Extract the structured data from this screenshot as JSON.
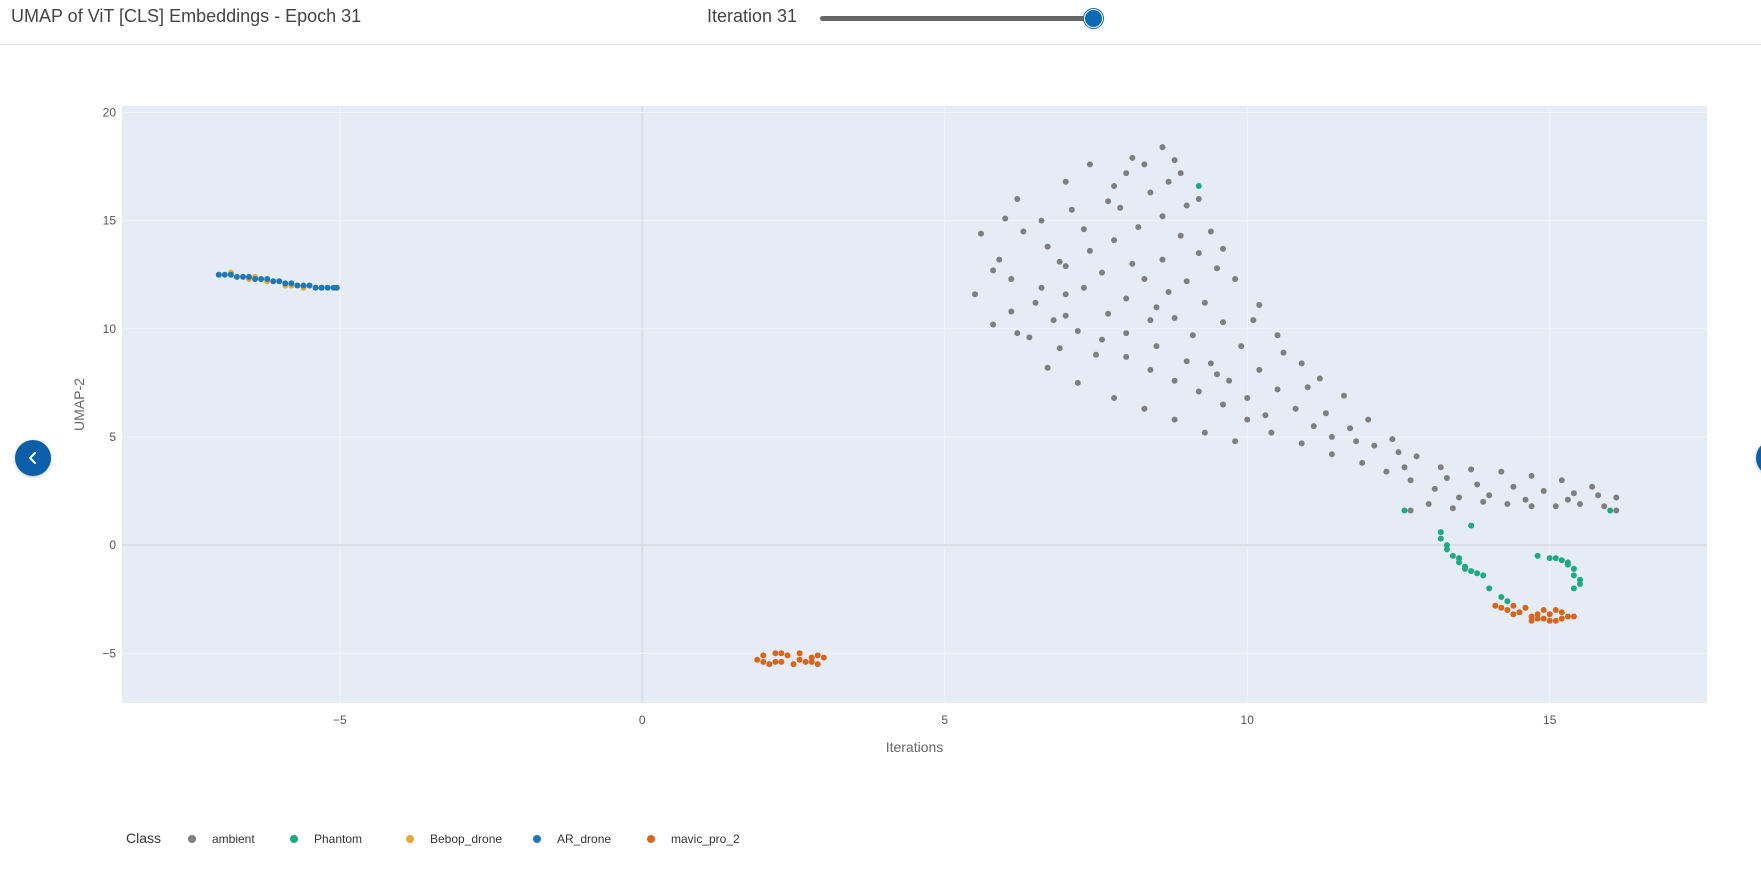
{
  "header": {
    "title": "UMAP of ViT [CLS] Embeddings - Epoch 31",
    "iteration_label": "Iteration 31",
    "slider": {
      "value": 31,
      "min": 0,
      "max": 31
    }
  },
  "nav": {
    "prev_icon": "chevron-left-icon",
    "next_icon": "chevron-right-icon"
  },
  "chart_data": {
    "type": "scatter",
    "xlabel": "Iterations",
    "ylabel": "UMAP-2",
    "xlim": [
      -8.6,
      17.6
    ],
    "ylim": [
      -7.3,
      20.3
    ],
    "xticks": [
      -5,
      0,
      5,
      10,
      15
    ],
    "yticks": [
      -5,
      0,
      5,
      10,
      15,
      20
    ],
    "grid": true,
    "plot_background": "#e5ecf6",
    "legend": {
      "title": "Class",
      "placement": "bottom-left",
      "entries": [
        "ambient",
        "Phantom",
        "Bebop_drone",
        "AR_drone",
        "mavic_pro_2"
      ]
    },
    "series": [
      {
        "name": "ambient",
        "color": "#7f7f7f",
        "points": [
          [
            5.5,
            11.6
          ],
          [
            5.6,
            14.4
          ],
          [
            5.9,
            13.2
          ],
          [
            6.2,
            16.0
          ],
          [
            6.6,
            15.0
          ],
          [
            6.9,
            13.1
          ],
          [
            7.0,
            16.8
          ],
          [
            7.4,
            17.6
          ],
          [
            7.8,
            16.6
          ],
          [
            8.1,
            17.9
          ],
          [
            8.6,
            18.4
          ],
          [
            8.9,
            17.2
          ],
          [
            9.2,
            16.0
          ],
          [
            9.6,
            13.7
          ],
          [
            9.8,
            12.3
          ],
          [
            10.2,
            11.1
          ],
          [
            10.5,
            9.7
          ],
          [
            10.9,
            8.4
          ],
          [
            11.2,
            7.7
          ],
          [
            11.6,
            6.9
          ],
          [
            12.0,
            5.8
          ],
          [
            12.4,
            4.9
          ],
          [
            12.8,
            4.1
          ],
          [
            13.2,
            3.6
          ],
          [
            13.7,
            3.5
          ],
          [
            14.2,
            3.4
          ],
          [
            14.7,
            3.2
          ],
          [
            15.2,
            3.0
          ],
          [
            15.7,
            2.7
          ],
          [
            16.1,
            2.2
          ],
          [
            6.1,
            12.3
          ],
          [
            6.5,
            11.2
          ],
          [
            6.8,
            10.4
          ],
          [
            7.2,
            9.9
          ],
          [
            7.6,
            9.5
          ],
          [
            8.0,
            8.7
          ],
          [
            8.4,
            8.1
          ],
          [
            8.8,
            7.6
          ],
          [
            9.2,
            7.1
          ],
          [
            9.6,
            6.5
          ],
          [
            10.0,
            5.8
          ],
          [
            10.4,
            5.2
          ],
          [
            10.9,
            4.7
          ],
          [
            11.4,
            4.2
          ],
          [
            11.9,
            3.8
          ],
          [
            12.3,
            3.4
          ],
          [
            12.7,
            3.0
          ],
          [
            13.1,
            2.6
          ],
          [
            13.5,
            2.2
          ],
          [
            13.9,
            2.0
          ],
          [
            14.3,
            1.9
          ],
          [
            14.7,
            1.8
          ],
          [
            15.1,
            1.8
          ],
          [
            15.5,
            1.9
          ],
          [
            15.9,
            1.8
          ],
          [
            16.1,
            1.6
          ],
          [
            12.7,
            1.6
          ],
          [
            13.0,
            1.9
          ],
          [
            6.7,
            8.2
          ],
          [
            7.2,
            7.5
          ],
          [
            7.8,
            6.8
          ],
          [
            8.3,
            6.3
          ],
          [
            8.8,
            5.8
          ],
          [
            9.3,
            5.2
          ],
          [
            9.8,
            4.8
          ],
          [
            7.0,
            12.9
          ],
          [
            7.4,
            13.6
          ],
          [
            7.8,
            14.1
          ],
          [
            8.2,
            14.7
          ],
          [
            8.6,
            15.2
          ],
          [
            8.9,
            14.3
          ],
          [
            8.6,
            13.2
          ],
          [
            8.3,
            12.3
          ],
          [
            8.0,
            11.4
          ],
          [
            7.7,
            10.7
          ],
          [
            7.3,
            11.9
          ],
          [
            7.0,
            11.6
          ],
          [
            6.7,
            13.8
          ],
          [
            6.3,
            14.5
          ],
          [
            6.0,
            15.1
          ],
          [
            5.8,
            12.7
          ],
          [
            6.1,
            10.8
          ],
          [
            9.0,
            12.2
          ],
          [
            9.3,
            11.2
          ],
          [
            9.6,
            10.3
          ],
          [
            9.9,
            9.2
          ],
          [
            10.2,
            8.1
          ],
          [
            10.5,
            7.2
          ],
          [
            10.8,
            6.3
          ],
          [
            11.1,
            5.5
          ],
          [
            11.4,
            5.0
          ],
          [
            9.1,
            9.7
          ],
          [
            8.8,
            10.5
          ],
          [
            8.5,
            11.0
          ],
          [
            9.4,
            8.4
          ],
          [
            9.7,
            7.6
          ],
          [
            10.0,
            6.8
          ],
          [
            10.3,
            6.0
          ],
          [
            7.5,
            8.8
          ],
          [
            8.0,
            9.8
          ],
          [
            8.5,
            9.2
          ],
          [
            9.0,
            8.5
          ],
          [
            9.5,
            7.9
          ],
          [
            6.4,
            9.6
          ],
          [
            6.9,
            9.1
          ],
          [
            7.9,
            15.6
          ],
          [
            8.4,
            16.3
          ],
          [
            8.8,
            17.8
          ],
          [
            7.1,
            15.5
          ],
          [
            7.6,
            12.6
          ],
          [
            8.1,
            13.0
          ],
          [
            8.4,
            10.4
          ],
          [
            8.7,
            11.7
          ],
          [
            9.2,
            13.5
          ],
          [
            9.5,
            12.8
          ],
          [
            5.8,
            10.2
          ],
          [
            6.2,
            9.8
          ],
          [
            6.6,
            11.9
          ],
          [
            7.0,
            10.6
          ],
          [
            7.3,
            14.6
          ],
          [
            7.7,
            15.9
          ],
          [
            8.0,
            17.2
          ],
          [
            8.3,
            17.6
          ],
          [
            8.7,
            16.8
          ],
          [
            9.0,
            15.7
          ],
          [
            9.4,
            14.5
          ],
          [
            10.1,
            10.4
          ],
          [
            10.6,
            8.9
          ],
          [
            11.0,
            7.3
          ],
          [
            11.3,
            6.1
          ],
          [
            11.7,
            5.4
          ],
          [
            12.1,
            4.6
          ],
          [
            12.5,
            4.3
          ],
          [
            11.8,
            4.8
          ],
          [
            12.6,
            3.6
          ],
          [
            13.3,
            3.1
          ],
          [
            13.8,
            2.8
          ],
          [
            14.4,
            2.7
          ],
          [
            14.9,
            2.5
          ],
          [
            15.4,
            2.4
          ],
          [
            15.8,
            2.3
          ],
          [
            13.4,
            1.7
          ],
          [
            14.0,
            2.3
          ],
          [
            14.6,
            2.1
          ],
          [
            15.3,
            2.1
          ]
        ]
      },
      {
        "name": "Phantom",
        "color": "#1fa884",
        "points": [
          [
            9.2,
            16.6
          ],
          [
            12.6,
            1.6
          ],
          [
            16.0,
            1.6
          ],
          [
            13.2,
            0.6
          ],
          [
            13.2,
            0.3
          ],
          [
            13.3,
            -0.2
          ],
          [
            13.4,
            -0.5
          ],
          [
            13.5,
            -0.8
          ],
          [
            13.6,
            -1.0
          ],
          [
            13.7,
            -1.2
          ],
          [
            13.8,
            -1.3
          ],
          [
            13.9,
            -1.4
          ],
          [
            13.3,
            0.0
          ],
          [
            13.5,
            -0.6
          ],
          [
            13.7,
            0.9
          ],
          [
            14.0,
            -2.0
          ],
          [
            14.2,
            -2.4
          ],
          [
            14.3,
            -2.6
          ],
          [
            14.8,
            -0.5
          ],
          [
            15.0,
            -0.6
          ],
          [
            15.2,
            -0.7
          ],
          [
            15.3,
            -0.9
          ],
          [
            15.4,
            -1.1
          ],
          [
            15.4,
            -1.4
          ],
          [
            15.5,
            -1.6
          ],
          [
            15.5,
            -1.8
          ],
          [
            15.4,
            -2.0
          ],
          [
            15.3,
            -0.8
          ],
          [
            15.1,
            -0.6
          ],
          [
            13.6,
            -1.1
          ]
        ]
      },
      {
        "name": "Bebop_drone",
        "color": "#e4a936",
        "points": [
          [
            -6.8,
            12.6
          ],
          [
            -6.4,
            12.4
          ],
          [
            -6.2,
            12.2
          ],
          [
            -5.8,
            12.0
          ],
          [
            -5.6,
            11.9
          ],
          [
            -5.3,
            11.9
          ],
          [
            -6.5,
            12.3
          ],
          [
            -5.9,
            12.0
          ]
        ]
      },
      {
        "name": "AR_drone",
        "color": "#1f77b4",
        "points": [
          [
            -7.0,
            12.5
          ],
          [
            -6.9,
            12.5
          ],
          [
            -6.8,
            12.5
          ],
          [
            -6.7,
            12.4
          ],
          [
            -6.6,
            12.4
          ],
          [
            -6.5,
            12.4
          ],
          [
            -6.4,
            12.3
          ],
          [
            -6.3,
            12.3
          ],
          [
            -6.2,
            12.3
          ],
          [
            -6.1,
            12.2
          ],
          [
            -6.0,
            12.2
          ],
          [
            -5.9,
            12.1
          ],
          [
            -5.8,
            12.1
          ],
          [
            -5.7,
            12.0
          ],
          [
            -5.6,
            12.0
          ],
          [
            -5.5,
            12.0
          ],
          [
            -5.4,
            11.9
          ],
          [
            -5.3,
            11.9
          ],
          [
            -5.2,
            11.9
          ],
          [
            -5.1,
            11.9
          ],
          [
            -5.05,
            11.9
          ]
        ]
      },
      {
        "name": "mavic_pro_2",
        "color": "#d9651c",
        "points": [
          [
            1.9,
            -5.3
          ],
          [
            2.0,
            -5.1
          ],
          [
            2.1,
            -5.5
          ],
          [
            2.2,
            -5.0
          ],
          [
            2.3,
            -5.4
          ],
          [
            2.4,
            -5.1
          ],
          [
            2.5,
            -5.5
          ],
          [
            2.6,
            -5.0
          ],
          [
            2.7,
            -5.4
          ],
          [
            2.8,
            -5.2
          ],
          [
            2.9,
            -5.5
          ],
          [
            3.0,
            -5.2
          ],
          [
            2.0,
            -5.4
          ],
          [
            2.3,
            -5.0
          ],
          [
            2.6,
            -5.3
          ],
          [
            2.9,
            -5.1
          ],
          [
            2.2,
            -5.4
          ],
          [
            2.8,
            -5.4
          ],
          [
            14.1,
            -2.8
          ],
          [
            14.2,
            -2.9
          ],
          [
            14.3,
            -3.0
          ],
          [
            14.4,
            -2.8
          ],
          [
            14.5,
            -3.1
          ],
          [
            14.6,
            -2.9
          ],
          [
            14.7,
            -3.3
          ],
          [
            14.8,
            -3.4
          ],
          [
            14.9,
            -3.4
          ],
          [
            15.0,
            -3.2
          ],
          [
            15.1,
            -3.5
          ],
          [
            15.2,
            -3.1
          ],
          [
            15.3,
            -3.3
          ],
          [
            15.4,
            -3.3
          ],
          [
            14.7,
            -3.5
          ],
          [
            14.9,
            -3.0
          ],
          [
            15.0,
            -3.5
          ],
          [
            15.2,
            -3.4
          ],
          [
            14.4,
            -3.2
          ],
          [
            14.8,
            -3.2
          ],
          [
            15.1,
            -3.0
          ]
        ]
      }
    ]
  }
}
